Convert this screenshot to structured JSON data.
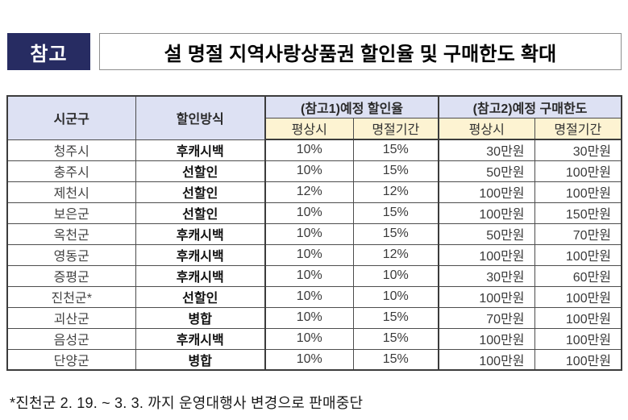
{
  "header": {
    "badge": "참고",
    "title": "설 명절 지역사랑상품권 할인율 및 구매한도 확대"
  },
  "table": {
    "col_headers": {
      "sigungu": "시군구",
      "method": "할인방식",
      "group_rate": "(참고1)예정 할인율",
      "group_limit": "(참고2)예정 구매한도",
      "rate_normal": "평상시",
      "rate_holiday": "명절기간",
      "limit_normal": "평상시",
      "limit_holiday": "명절기간"
    },
    "rows": [
      {
        "region": "청주시",
        "method": "후캐시백",
        "rate_normal": "10%",
        "rate_holiday": "15%",
        "limit_normal": "30만원",
        "limit_holiday": "30만원"
      },
      {
        "region": "충주시",
        "method": "선할인",
        "rate_normal": "10%",
        "rate_holiday": "15%",
        "limit_normal": "50만원",
        "limit_holiday": "100만원"
      },
      {
        "region": "제천시",
        "method": "선할인",
        "rate_normal": "12%",
        "rate_holiday": "12%",
        "limit_normal": "100만원",
        "limit_holiday": "100만원"
      },
      {
        "region": "보은군",
        "method": "선할인",
        "rate_normal": "10%",
        "rate_holiday": "15%",
        "limit_normal": "100만원",
        "limit_holiday": "150만원"
      },
      {
        "region": "옥천군",
        "method": "후캐시백",
        "rate_normal": "10%",
        "rate_holiday": "15%",
        "limit_normal": "50만원",
        "limit_holiday": "70만원"
      },
      {
        "region": "영동군",
        "method": "후캐시백",
        "rate_normal": "10%",
        "rate_holiday": "12%",
        "limit_normal": "100만원",
        "limit_holiday": "100만원"
      },
      {
        "region": "증평군",
        "method": "후캐시백",
        "rate_normal": "10%",
        "rate_holiday": "10%",
        "limit_normal": "30만원",
        "limit_holiday": "60만원"
      },
      {
        "region": "진천군*",
        "method": "선할인",
        "rate_normal": "10%",
        "rate_holiday": "10%",
        "limit_normal": "100만원",
        "limit_holiday": "100만원"
      },
      {
        "region": "괴산군",
        "method": "병합",
        "rate_normal": "10%",
        "rate_holiday": "15%",
        "limit_normal": "70만원",
        "limit_holiday": "100만원"
      },
      {
        "region": "음성군",
        "method": "후캐시백",
        "rate_normal": "10%",
        "rate_holiday": "15%",
        "limit_normal": "100만원",
        "limit_holiday": "100만원"
      },
      {
        "region": "단양군",
        "method": "병합",
        "rate_normal": "10%",
        "rate_holiday": "15%",
        "limit_normal": "100만원",
        "limit_holiday": "100만원"
      }
    ]
  },
  "footnote": "*진천군  2. 19. ~ 3. 3. 까지 운영대행사 변경으로 판매중단",
  "colors": {
    "badge_bg": "#272c62",
    "header_blue": "#dde1f3",
    "header_yellow": "#fdf3d2",
    "border_dark": "#3c3c3c"
  }
}
